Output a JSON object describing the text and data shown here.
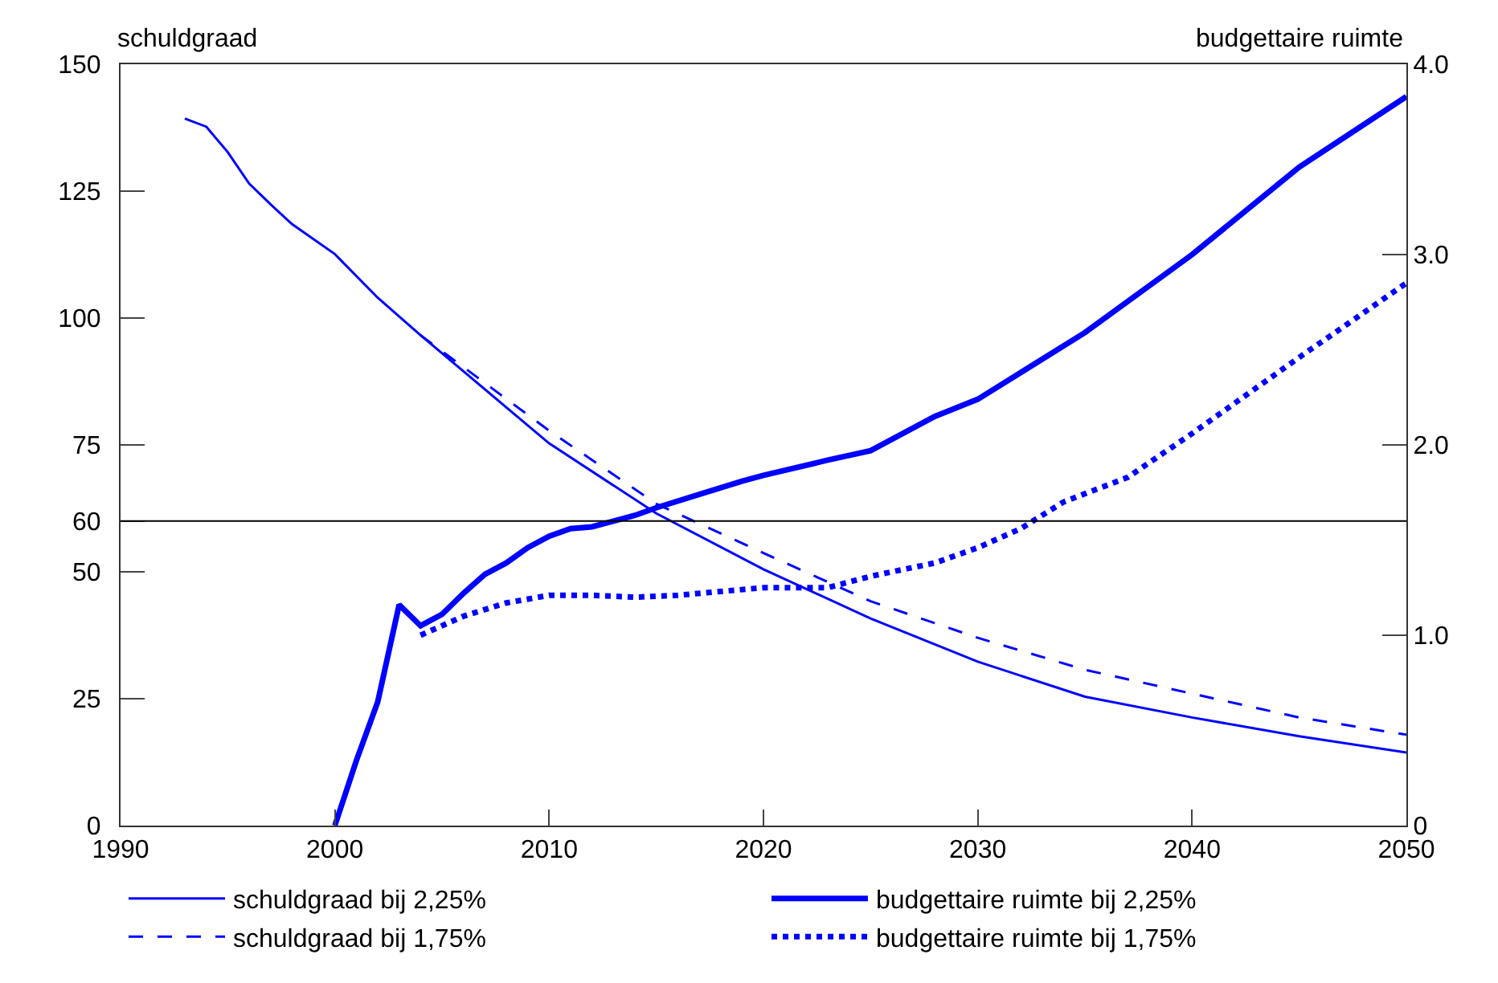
{
  "chart_data": {
    "type": "line",
    "ylabel": "schuldgraad",
    "y2label": "budgettaire ruimte",
    "xlim": [
      1990,
      2050
    ],
    "xticks": [
      1990,
      2000,
      2010,
      2020,
      2030,
      2040,
      2050
    ],
    "ylim": [
      0,
      150
    ],
    "yticks": [
      0,
      25,
      50,
      60,
      75,
      100,
      125,
      150
    ],
    "y2lim": [
      0,
      4
    ],
    "y2ticks": [
      0,
      {
        "value": 1,
        "label": "1.0"
      },
      {
        "value": 2,
        "label": "2.0"
      },
      {
        "value": 3,
        "label": "3.0"
      },
      {
        "value": 4,
        "label": "4.0"
      }
    ],
    "grid": false,
    "legend": "bottom",
    "marker": "none",
    "ref_lines": [
      {
        "axis": "y",
        "value": 60,
        "color": "#000000"
      }
    ],
    "series": [
      {
        "name": "schuldgraad bij 2,25%",
        "color": "#0000ff",
        "line_style": "solid",
        "x": [
          1993,
          1994,
          1995,
          1996,
          1997,
          1998,
          2000,
          2002,
          2004,
          2010,
          2015,
          2020,
          2025,
          2030,
          2035,
          2040,
          2045,
          2050
        ],
        "values": [
          139.3,
          137.7,
          132.7,
          126.5,
          122.4,
          118.5,
          112.6,
          104,
          96.6,
          75.3,
          61.5,
          50.5,
          40.8,
          32.3,
          25.4,
          21.3,
          17.6,
          14.4
        ]
      },
      {
        "name": "budgettaire ruimte bij 2,25%",
        "color": "#0000ff",
        "line_style": "solid",
        "axis": "y2",
        "x": [
          2000,
          2001,
          2002,
          2003,
          2004,
          2005,
          2006,
          2007,
          2008,
          2009,
          2010,
          2011,
          2012,
          2013,
          2014,
          2015,
          2017,
          2019,
          2020,
          2023,
          2025,
          2028,
          2030,
          2032,
          2035,
          2040,
          2045,
          2050
        ],
        "values": [
          0,
          0.34,
          0.65,
          1.16,
          1.05,
          1.11,
          1.22,
          1.32,
          1.38,
          1.46,
          1.52,
          1.56,
          1.57,
          1.6,
          1.63,
          1.67,
          1.74,
          1.81,
          1.84,
          1.92,
          1.97,
          2.15,
          2.24,
          2.38,
          2.59,
          3.0,
          3.46,
          3.83
        ]
      },
      {
        "name": "schuldgraad bij 1,75%",
        "color": "#0000ff",
        "line_style": "dashed",
        "x": [
          2004,
          2010,
          2015,
          2020,
          2025,
          2030,
          2035,
          2040,
          2045,
          2050
        ],
        "values": [
          96.6,
          77.8,
          63.4,
          53.7,
          44.2,
          37,
          30.7,
          26,
          21.3,
          17.9
        ]
      },
      {
        "name": "budgettaire ruimte bij 1,75%",
        "color": "#0000ff",
        "line_style": "dotted",
        "axis": "y2",
        "x": [
          2004,
          2006,
          2008,
          2010,
          2012,
          2014,
          2016,
          2018,
          2020,
          2023,
          2025,
          2028,
          2030,
          2032,
          2034,
          2037,
          2040,
          2045,
          2050
        ],
        "values": [
          1.0,
          1.1,
          1.17,
          1.21,
          1.21,
          1.2,
          1.21,
          1.23,
          1.25,
          1.25,
          1.31,
          1.38,
          1.46,
          1.56,
          1.7,
          1.83,
          2.06,
          2.46,
          2.85
        ]
      }
    ]
  }
}
